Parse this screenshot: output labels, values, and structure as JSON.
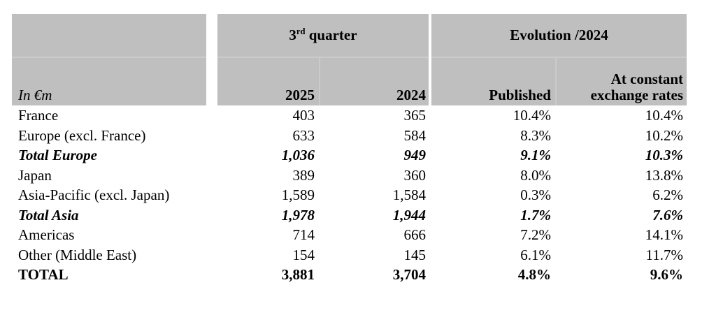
{
  "table": {
    "unit_label": "In €m",
    "header": {
      "quarter_group": {
        "num": "3",
        "sup": "rd",
        "rest": " quarter"
      },
      "evolution_group": "Evolution /2024",
      "col_2025": "2025",
      "col_2024": "2024",
      "col_published": "Published",
      "col_constant": "At constant exchange rates"
    },
    "rows": [
      {
        "label": "France",
        "v2025": "403",
        "v2024": "365",
        "published": "10.4%",
        "constant": "10.4%",
        "style": "normal"
      },
      {
        "label": "Europe (excl. France)",
        "v2025": "633",
        "v2024": "584",
        "published": "8.3%",
        "constant": "10.2%",
        "style": "normal"
      },
      {
        "label": "Total Europe",
        "v2025": "1,036",
        "v2024": "949",
        "published": "9.1%",
        "constant": "10.3%",
        "style": "subtotal"
      },
      {
        "label": "Japan",
        "v2025": "389",
        "v2024": "360",
        "published": "8.0%",
        "constant": "13.8%",
        "style": "normal"
      },
      {
        "label": "Asia-Pacific (excl. Japan)",
        "v2025": "1,589",
        "v2024": "1,584",
        "published": "0.3%",
        "constant": "6.2%",
        "style": "normal"
      },
      {
        "label": "Total Asia",
        "v2025": "1,978",
        "v2024": "1,944",
        "published": "1.7%",
        "constant": "7.6%",
        "style": "subtotal"
      },
      {
        "label": "Americas",
        "v2025": "714",
        "v2024": "666",
        "published": "7.2%",
        "constant": "14.1%",
        "style": "normal"
      },
      {
        "label": "Other (Middle East)",
        "v2025": "154",
        "v2024": "145",
        "published": "6.1%",
        "constant": "11.7%",
        "style": "normal"
      },
      {
        "label": "TOTAL",
        "v2025": "3,881",
        "v2024": "3,704",
        "published": "4.8%",
        "constant": "9.6%",
        "style": "total"
      }
    ],
    "colors": {
      "header_bg": "#bfbfbf",
      "divider": "#cbcbcb",
      "text": "#000000",
      "background": "#ffffff"
    }
  }
}
